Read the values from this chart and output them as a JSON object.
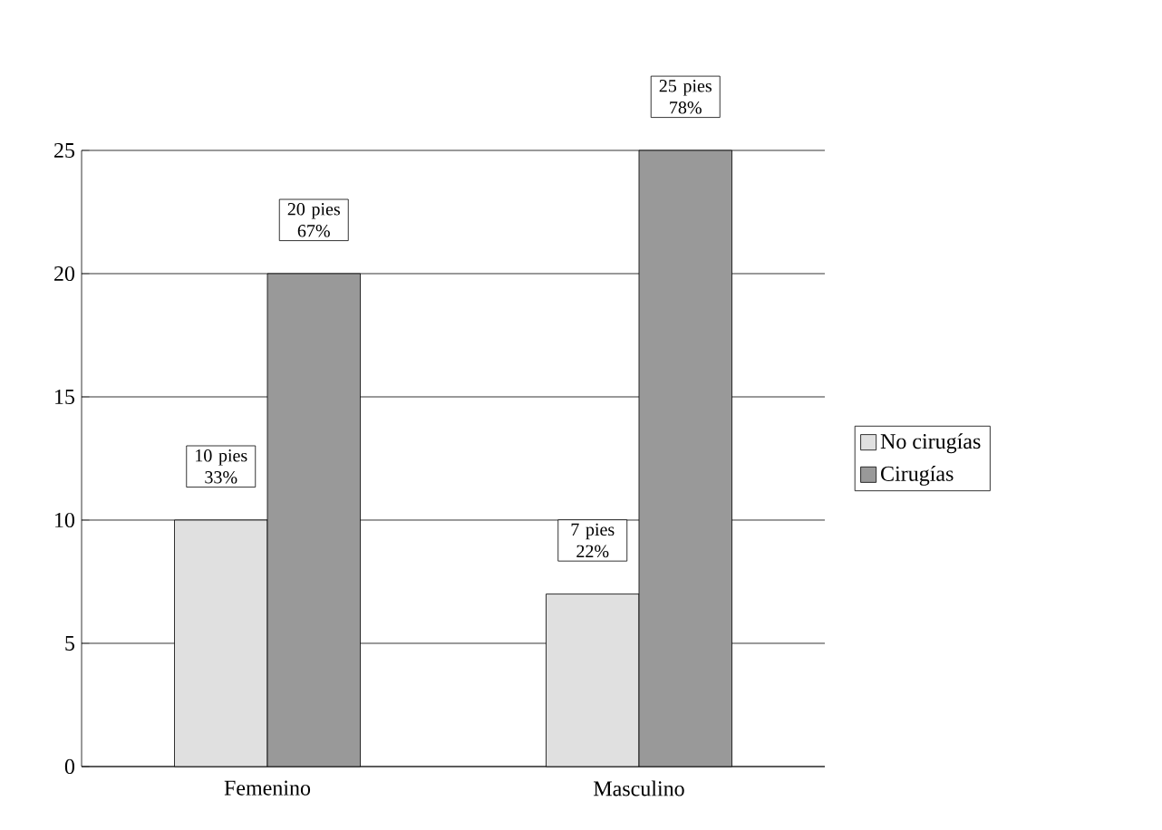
{
  "chart_data": {
    "type": "bar",
    "categories": [
      "Femenino",
      "Masculino"
    ],
    "series": [
      {
        "name": "No cirugías",
        "color": "#e0e0e0",
        "values": [
          10,
          7
        ],
        "value_labels": [
          "10 pies 33%",
          "7 pies 22%"
        ]
      },
      {
        "name": "Cirugías",
        "color": "#999999",
        "values": [
          20,
          25
        ],
        "value_labels": [
          "20 pies 67%",
          "25 pies 78%"
        ]
      }
    ],
    "ylim": [
      0,
      25
    ],
    "yticks": [
      0,
      5,
      10,
      15,
      20,
      25
    ],
    "grid": "y",
    "legend": "right"
  }
}
